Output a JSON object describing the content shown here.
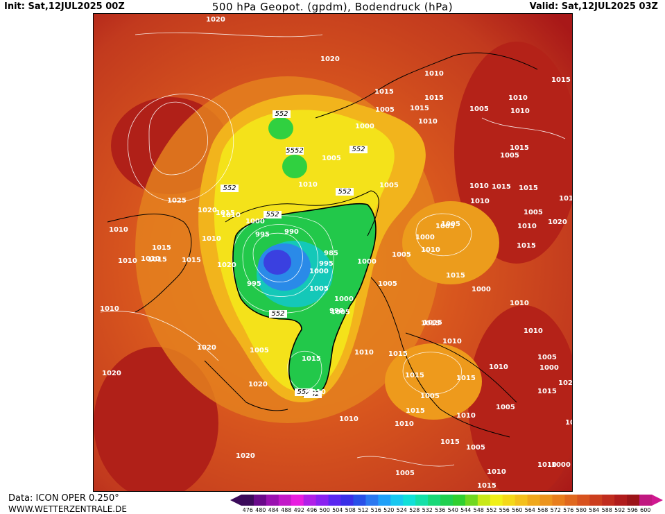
{
  "header": {
    "init": "Init: Sat,12JUL2025 00Z",
    "title": "500 hPa Geopot. (gpdm), Bodendruck (hPa)",
    "valid": "Valid: Sat,12JUL2025 03Z"
  },
  "footer": {
    "data_source": "Data: ICON OPER 0.250°",
    "website": "WWW.WETTERZENTRALE.DE"
  },
  "colors": {
    "low": "#4a2fd6",
    "mid_green": "#22c84a",
    "yellow": "#f2ea1a",
    "orange": "#e8901e",
    "red": "#c23a1e",
    "dark_red": "#a81818"
  },
  "colorbar": {
    "ticks": [
      "476",
      "480",
      "484",
      "488",
      "492",
      "496",
      "500",
      "504",
      "508",
      "512",
      "516",
      "520",
      "524",
      "528",
      "532",
      "536",
      "540",
      "544",
      "548",
      "552",
      "556",
      "560",
      "564",
      "568",
      "572",
      "576",
      "580",
      "584",
      "588",
      "592",
      "596",
      "600"
    ],
    "colors": [
      "#3b0a5a",
      "#6a0a8a",
      "#9a12b0",
      "#c21ac8",
      "#e81ee0",
      "#b020e8",
      "#8a22f0",
      "#5a28f0",
      "#3a30e8",
      "#2850e8",
      "#2a78f0",
      "#20a0f8",
      "#18c8f0",
      "#10e0d8",
      "#14e0a8",
      "#18d878",
      "#20d050",
      "#30d030",
      "#70d820",
      "#c8e818",
      "#f0f018",
      "#f4d818",
      "#f4c01c",
      "#f0a81c",
      "#ec941c",
      "#e87e1c",
      "#e0681e",
      "#d8521e",
      "#cc3e1e",
      "#c02c1e",
      "#b01c1c",
      "#9c1418",
      "#c01880"
    ]
  },
  "map": {
    "geopot_labels": [
      "552",
      "5552",
      "552",
      "552",
      "552",
      "552",
      "552",
      "552",
      "552"
    ],
    "pressure_labels": [
      "1020",
      "1020",
      "1025",
      "1020",
      "1015",
      "1010",
      "1010",
      "1010",
      "1015",
      "1015",
      "1010",
      "1010",
      "1015",
      "1020",
      "1020",
      "1020",
      "1010",
      "1005",
      "1000",
      "995",
      "990",
      "985",
      "995",
      "1000",
      "1005",
      "1000",
      "995",
      "990",
      "1005",
      "1010",
      "1000",
      "1005",
      "1005",
      "1015",
      "1010",
      "1015",
      "1005",
      "1015",
      "1010",
      "1005",
      "1010",
      "1015",
      "1010",
      "1015",
      "1005",
      "1010",
      "1015",
      "1015",
      "1010",
      "1015",
      "1020",
      "1005",
      "1000",
      "1005",
      "1010",
      "1005",
      "1010",
      "1015",
      "1015",
      "1015",
      "1010",
      "1015",
      "1015",
      "1015",
      "1005",
      "1010",
      "1015",
      "1015",
      "1010",
      "1015",
      "1005",
      "1000",
      "1020",
      "1020",
      "1010",
      "1010",
      "1020",
      "1005",
      "1010",
      "1000",
      "1010",
      "1005",
      "1015",
      "1005",
      "1010",
      "1005",
      "1010",
      "1005",
      "1010",
      "1000",
      "1000",
      "1010",
      "1005",
      "1015",
      "1015"
    ]
  }
}
